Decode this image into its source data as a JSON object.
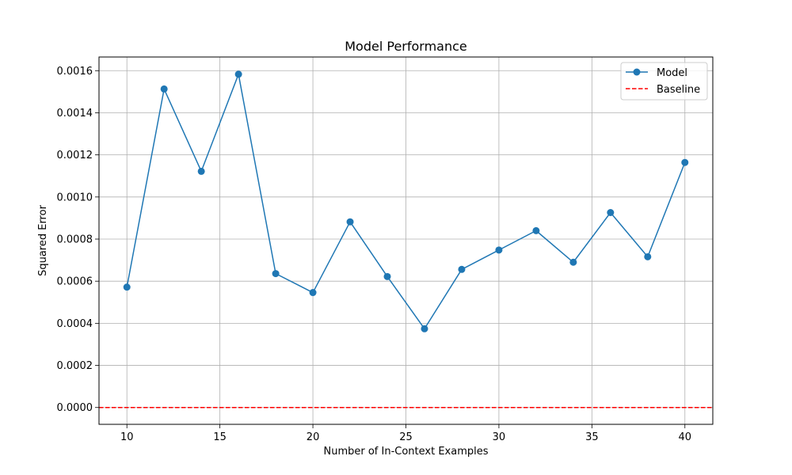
{
  "chart_data": {
    "type": "line",
    "title": "Model Performance",
    "xlabel": "Number of In-Context Examples",
    "ylabel": "Squared Error",
    "xlim": [
      8.5,
      41.5
    ],
    "ylim": [
      -8e-05,
      0.001665
    ],
    "xticks": [
      10,
      15,
      20,
      25,
      30,
      35,
      40
    ],
    "xtick_labels": [
      "10",
      "15",
      "20",
      "25",
      "30",
      "35",
      "40"
    ],
    "yticks": [
      0,
      0.0002,
      0.0004,
      0.0006,
      0.0008,
      0.001,
      0.0012,
      0.0014,
      0.0016
    ],
    "ytick_labels": [
      "0.0000",
      "0.0002",
      "0.0004",
      "0.0006",
      "0.0008",
      "0.0010",
      "0.0012",
      "0.0014",
      "0.0016"
    ],
    "grid": true,
    "legend_position": "top-right",
    "series": [
      {
        "name": "Model",
        "style": "solid-markers",
        "color": "#1f77b4",
        "x": [
          10,
          12,
          14,
          16,
          18,
          20,
          22,
          24,
          26,
          28,
          30,
          32,
          34,
          36,
          38,
          40
        ],
        "values": [
          0.000572,
          0.001513,
          0.001122,
          0.001583,
          0.000636,
          0.000546,
          0.000882,
          0.000622,
          0.000374,
          0.000656,
          0.000748,
          0.00084,
          0.00069,
          0.000926,
          0.000716,
          0.001164
        ]
      },
      {
        "name": "Baseline",
        "style": "dashed",
        "color": "#ff0000",
        "constant": 0
      }
    ]
  }
}
